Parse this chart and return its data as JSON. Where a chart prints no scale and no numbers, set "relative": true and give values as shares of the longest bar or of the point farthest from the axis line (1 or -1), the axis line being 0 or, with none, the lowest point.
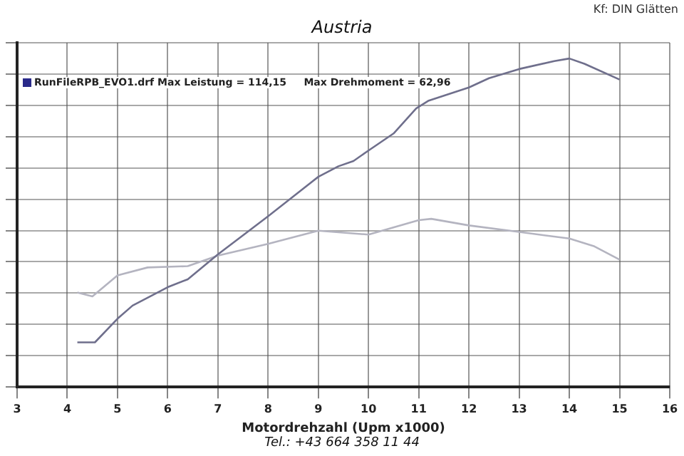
{
  "chart_data": {
    "type": "line",
    "title": "Austria",
    "xlabel": "Motordrehzahl (Upm x1000)",
    "relative": true,
    "tick_labels": "x",
    "grid": true,
    "legend": false,
    "marker": "none",
    "line_style": "solid",
    "xlim": [
      3,
      16
    ],
    "xticks": [
      3,
      4,
      5,
      6,
      7,
      8,
      9,
      10,
      11,
      12,
      13,
      14,
      15,
      16
    ],
    "annotations": [
      "Kf: DIN  Glätten",
      "RunFileRPB_EVO1.drf Max Leistung = 114,15     Max Drehmoment = 62,96",
      "Tel.: +43 664 358 11 44"
    ],
    "series": [
      {
        "color": "#6f6f8c",
        "x": [
          4.2,
          4.55,
          5.0,
          5.3,
          6.0,
          6.4,
          7.0,
          8.0,
          9.0,
          9.4,
          9.7,
          10.0,
          10.5,
          10.95,
          11.2,
          12.0,
          12.4,
          13.0,
          13.7,
          14.0,
          14.3,
          15.0
        ],
        "values": [
          0.136,
          0.136,
          0.208,
          0.248,
          0.304,
          0.328,
          0.404,
          0.52,
          0.64,
          0.672,
          0.688,
          0.72,
          0.772,
          0.848,
          0.872,
          0.912,
          0.94,
          0.968,
          0.992,
          1,
          0.984,
          0.936
        ]
      },
      {
        "color": "#b4b4c0",
        "x": [
          4.2,
          4.5,
          5.0,
          5.6,
          6.4,
          7.0,
          8.0,
          9.0,
          10.0,
          11.0,
          11.25,
          12.0,
          13.0,
          14.0,
          14.5,
          15.0
        ],
        "values": [
          0.288,
          0.276,
          0.34,
          0.364,
          0.368,
          0.4,
          0.436,
          0.476,
          0.464,
          0.508,
          0.512,
          0.492,
          0.472,
          0.452,
          0.428,
          0.388
        ]
      }
    ]
  }
}
